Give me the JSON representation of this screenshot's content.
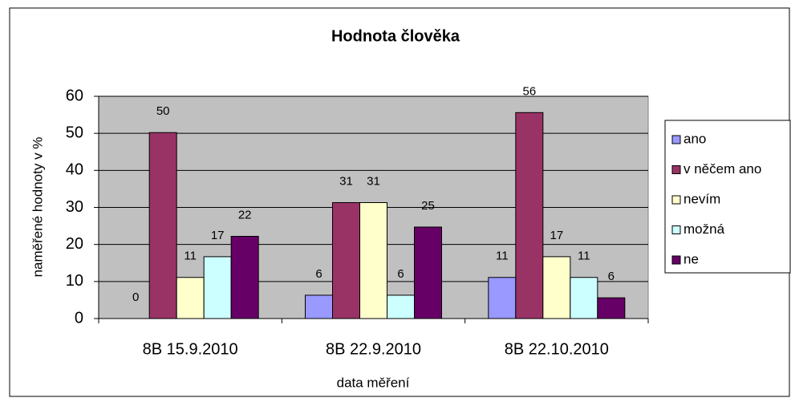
{
  "chart_data": {
    "type": "bar",
    "title": "Hodnota člověka",
    "x_label": "data měření",
    "y_label": "naměřené hodnoty v %",
    "categories": [
      "8B  15.9.2010",
      "8B  22.9.2010",
      "8B  22.10.2010"
    ],
    "series": [
      {
        "name": "ano",
        "color": "#9999ff",
        "values": [
          0,
          6.3,
          11.1
        ],
        "value_labels": [
          "0",
          "6",
          "11"
        ]
      },
      {
        "name": "v něčem ano",
        "color": "#993366",
        "values": [
          50.2,
          31.3,
          55.6
        ],
        "value_labels": [
          "50",
          "31",
          "56"
        ]
      },
      {
        "name": "nevím",
        "color": "#ffffcc",
        "values": [
          11.1,
          31.3,
          16.7
        ],
        "value_labels": [
          "11",
          "31",
          "17"
        ]
      },
      {
        "name": "možná",
        "color": "#ccffff",
        "values": [
          16.7,
          6.3,
          11.1
        ],
        "value_labels": [
          "17",
          "6",
          "11"
        ]
      },
      {
        "name": "ne",
        "color": "#660066",
        "values": [
          22.2,
          24.7,
          5.6
        ],
        "value_labels": [
          "22",
          "25",
          "6"
        ]
      }
    ],
    "ylim": [
      0,
      60
    ],
    "yticks": [
      0,
      10,
      20,
      30,
      40,
      50,
      60
    ],
    "grid": true,
    "legend": "right"
  }
}
